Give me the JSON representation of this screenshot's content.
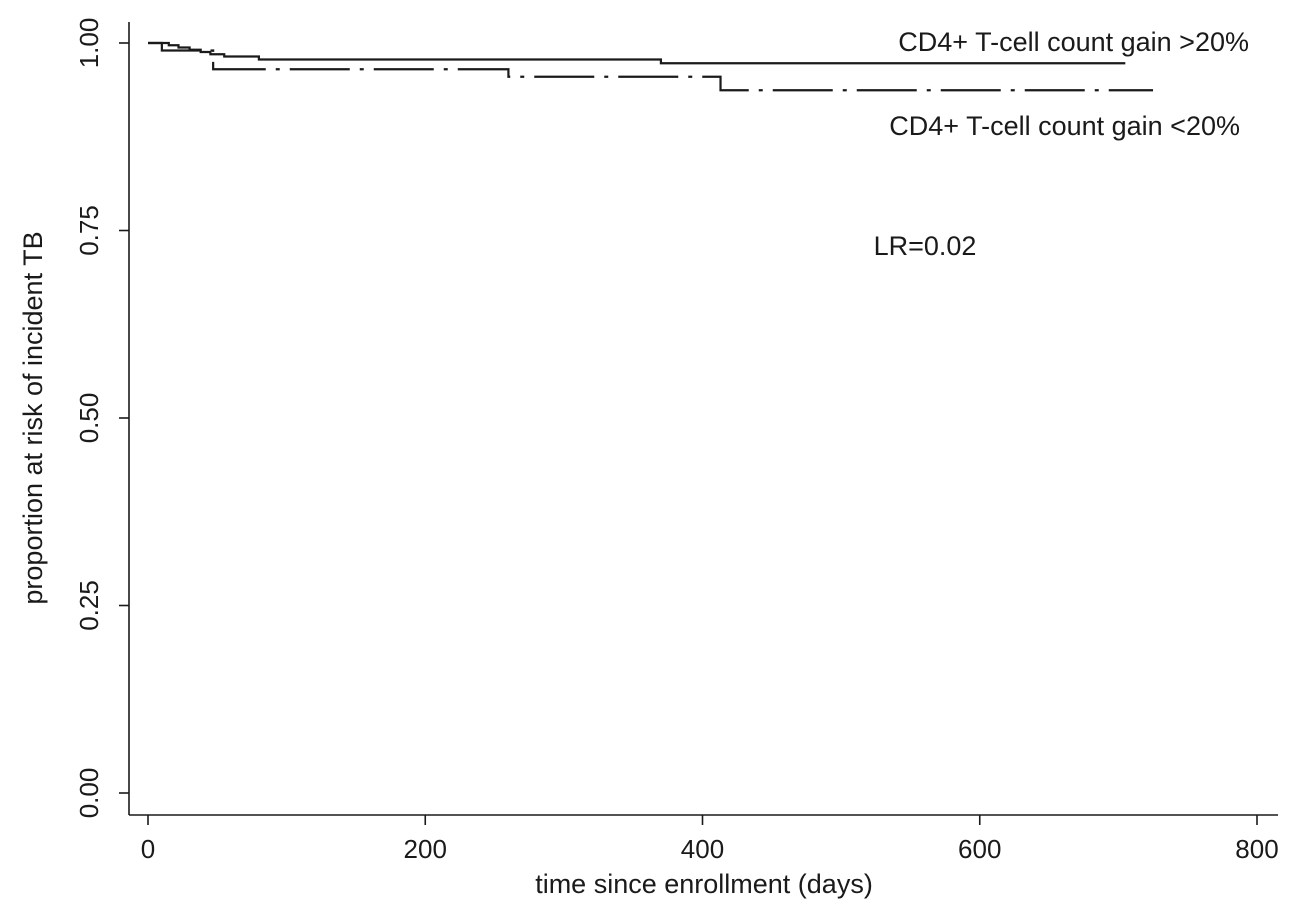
{
  "chart_data": {
    "type": "line",
    "title": "",
    "xlabel": "time since enrollment (days)",
    "ylabel": "proportion at risk of incident TB",
    "xlim": [
      0,
      800
    ],
    "ylim": [
      0,
      1
    ],
    "xticks": [
      0,
      200,
      400,
      600,
      800
    ],
    "xtick_labels": [
      "0",
      "200",
      "400",
      "600",
      "800"
    ],
    "yticks": [
      0,
      0.25,
      0.5,
      0.75,
      1
    ],
    "ytick_labels": [
      "0.00",
      "0.25",
      "0.50",
      "0.75",
      "1.00"
    ],
    "grid": false,
    "legend": "none",
    "annotations": [
      {
        "text": "LR=0.02",
        "x": 560,
        "y": 0.73
      }
    ],
    "series": [
      {
        "name": "CD4+ T-cell count gain >20%",
        "style": "solid",
        "step": true,
        "x": [
          0,
          15,
          22,
          30,
          38,
          45,
          55,
          80,
          370,
          705
        ],
        "y": [
          1.0,
          0.997,
          0.994,
          0.991,
          0.988,
          0.985,
          0.982,
          0.978,
          0.973,
          0.973
        ]
      },
      {
        "name": "CD4+ T-cell count gain <20%",
        "style": "dashdot",
        "step": true,
        "x": [
          0,
          10,
          47,
          260,
          413,
          725
        ],
        "y": [
          1.0,
          0.99,
          0.965,
          0.955,
          0.937,
          0.937
        ]
      }
    ]
  }
}
